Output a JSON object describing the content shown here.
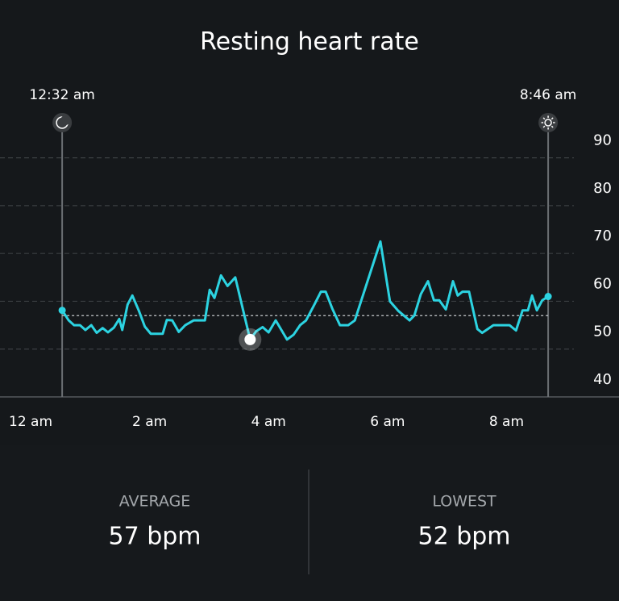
{
  "chart_data": {
    "type": "line",
    "title": "Resting heart rate",
    "xlim": [
      -0.515,
      9.891
    ],
    "ylim": [
      40,
      95
    ],
    "yticks": [
      40,
      50,
      60,
      70,
      80,
      90
    ],
    "xticks": [
      {
        "value": 0,
        "label": "12 am"
      },
      {
        "value": 2,
        "label": "2 am"
      },
      {
        "value": 4,
        "label": "4 am"
      },
      {
        "value": 6,
        "label": "6 am"
      },
      {
        "value": 8,
        "label": "8 am"
      }
    ],
    "grid": true,
    "sleep": [
      {
        "x": 0.53,
        "label": "12:32 am"
      },
      {
        "x": 8.7,
        "label": "8:46 am"
      }
    ],
    "series": [
      {
        "name": "Resting heart rate",
        "color": "#2cd3e1",
        "x": [
          0.53,
          0.64,
          0.73,
          0.83,
          0.92,
          1.02,
          1.11,
          1.21,
          1.3,
          1.4,
          1.49,
          1.54,
          1.63,
          1.71,
          1.82,
          1.92,
          2.02,
          2.13,
          2.22,
          2.29,
          2.38,
          2.49,
          2.6,
          2.74,
          2.93,
          3.01,
          3.09,
          3.2,
          3.31,
          3.44,
          3.69,
          3.79,
          3.9,
          4.0,
          4.12,
          4.31,
          4.42,
          4.53,
          4.63,
          4.77,
          4.88,
          4.96,
          5.07,
          5.2,
          5.34,
          5.45,
          5.88,
          6.04,
          6.18,
          6.37,
          6.45,
          6.56,
          6.68,
          6.78,
          6.87,
          6.98,
          7.1,
          7.18,
          7.26,
          7.37,
          7.51,
          7.59,
          7.78,
          7.91,
          8.05,
          8.16,
          8.27,
          8.36,
          8.43,
          8.51,
          8.6,
          8.7
        ],
        "values": [
          58.1,
          56,
          55,
          55,
          54,
          55,
          53.4,
          54.4,
          53.5,
          54.5,
          56.3,
          54,
          59.3,
          61.2,
          58,
          54.7,
          53.2,
          53.2,
          53.2,
          56.1,
          56,
          53.6,
          55,
          56,
          56,
          62.4,
          60.7,
          65.4,
          63.2,
          65,
          52,
          53.7,
          54.6,
          53.5,
          56,
          52,
          53,
          55,
          56,
          59.3,
          62,
          62,
          58.5,
          55,
          55,
          56,
          72.5,
          60,
          58,
          56,
          57,
          61.5,
          64.2,
          60.2,
          60.2,
          58.3,
          64.2,
          61.2,
          62,
          62,
          54.2,
          53.4,
          55,
          55,
          55,
          53.9,
          58.1,
          58.1,
          61.2,
          58.1,
          60.2,
          61
        ]
      }
    ],
    "stats": [
      {
        "label": "AVERAGE",
        "value": 57,
        "value_label": "57 bpm"
      },
      {
        "label": "LOWEST",
        "value": 52,
        "value_label": "52 bpm"
      }
    ]
  }
}
